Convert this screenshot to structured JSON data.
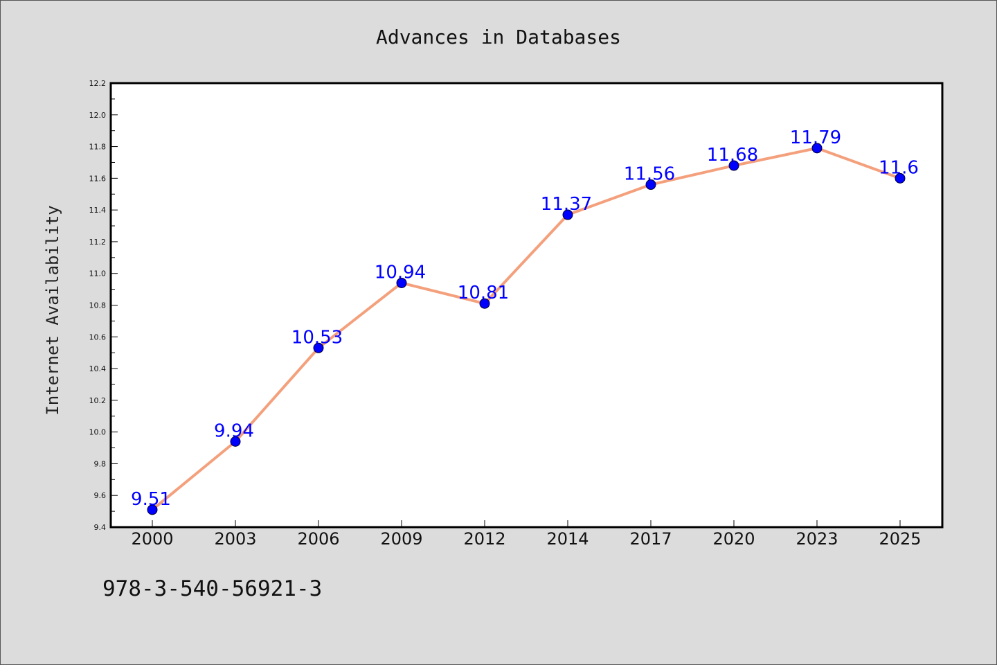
{
  "chart_data": {
    "type": "line",
    "title": "Advances in Databases",
    "xlabel": "",
    "ylabel": "Internet Availability",
    "categories": [
      "2000",
      "2003",
      "2006",
      "2009",
      "2012",
      "2014",
      "2017",
      "2020",
      "2023",
      "2025"
    ],
    "series": [
      {
        "values": [
          9.51,
          9.94,
          10.53,
          10.94,
          10.81,
          11.37,
          11.56,
          11.68,
          11.79,
          11.6
        ],
        "data_labels": [
          "9.51",
          "9.94",
          "10.53",
          "10.94",
          "10.81",
          "11.37",
          "11.56",
          "11.68",
          "11.79",
          "11.6"
        ]
      }
    ],
    "ylim": [
      9.4,
      12.2
    ],
    "yticks": [
      "9.4",
      "9.6",
      "9.8",
      "10.0",
      "10.2",
      "10.4",
      "10.6",
      "10.8",
      "11.0",
      "11.2",
      "11.4",
      "11.6",
      "11.8",
      "12.0",
      "12.2"
    ],
    "grid": false,
    "line_color": "#f4a07c",
    "marker_color": "#0000ff",
    "label_color": "#0000ff"
  },
  "footer": {
    "code": "978-3-540-56921-3"
  }
}
